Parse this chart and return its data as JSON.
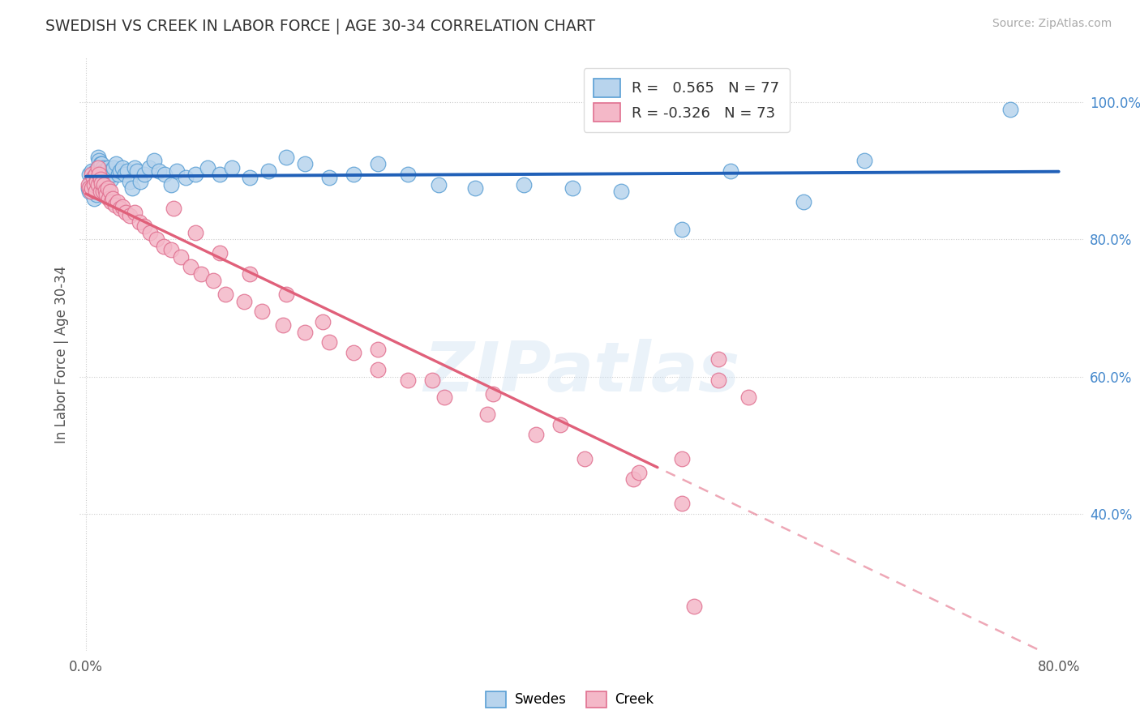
{
  "title": "SWEDISH VS CREEK IN LABOR FORCE | AGE 30-34 CORRELATION CHART",
  "source_text": "Source: ZipAtlas.com",
  "ylabel": "In Labor Force | Age 30-34",
  "xlim": [
    -0.005,
    0.82
  ],
  "ylim": [
    0.2,
    1.065
  ],
  "R_blue": 0.565,
  "N_blue": 77,
  "R_pink": -0.326,
  "N_pink": 73,
  "blue_face": "#b8d4ed",
  "blue_edge": "#5a9fd4",
  "blue_line": "#2060b8",
  "pink_face": "#f4b8c8",
  "pink_edge": "#e07090",
  "pink_line": "#e0607a",
  "watermark": "ZIPatlas",
  "legend_blue": "Swedes",
  "legend_pink": "Creek",
  "swedes_x": [
    0.002,
    0.003,
    0.003,
    0.004,
    0.005,
    0.005,
    0.006,
    0.006,
    0.007,
    0.007,
    0.008,
    0.008,
    0.009,
    0.009,
    0.01,
    0.01,
    0.01,
    0.011,
    0.011,
    0.012,
    0.012,
    0.013,
    0.013,
    0.014,
    0.014,
    0.015,
    0.015,
    0.016,
    0.016,
    0.017,
    0.018,
    0.019,
    0.02,
    0.021,
    0.022,
    0.023,
    0.025,
    0.027,
    0.028,
    0.03,
    0.032,
    0.034,
    0.036,
    0.038,
    0.04,
    0.042,
    0.045,
    0.048,
    0.052,
    0.056,
    0.06,
    0.065,
    0.07,
    0.075,
    0.082,
    0.09,
    0.1,
    0.11,
    0.12,
    0.135,
    0.15,
    0.165,
    0.18,
    0.2,
    0.22,
    0.24,
    0.265,
    0.29,
    0.32,
    0.36,
    0.4,
    0.44,
    0.49,
    0.53,
    0.59,
    0.64,
    0.76
  ],
  "swedes_y": [
    0.875,
    0.895,
    0.87,
    0.885,
    0.9,
    0.875,
    0.89,
    0.87,
    0.885,
    0.86,
    0.9,
    0.875,
    0.895,
    0.865,
    0.92,
    0.905,
    0.88,
    0.915,
    0.89,
    0.91,
    0.885,
    0.91,
    0.888,
    0.905,
    0.882,
    0.9,
    0.878,
    0.895,
    0.87,
    0.89,
    0.905,
    0.895,
    0.9,
    0.888,
    0.895,
    0.905,
    0.91,
    0.895,
    0.9,
    0.905,
    0.895,
    0.9,
    0.885,
    0.875,
    0.905,
    0.9,
    0.885,
    0.895,
    0.905,
    0.915,
    0.9,
    0.895,
    0.88,
    0.9,
    0.89,
    0.895,
    0.905,
    0.895,
    0.905,
    0.89,
    0.9,
    0.92,
    0.91,
    0.89,
    0.895,
    0.91,
    0.895,
    0.88,
    0.875,
    0.88,
    0.875,
    0.87,
    0.815,
    0.9,
    0.855,
    0.915,
    0.99
  ],
  "creek_x": [
    0.002,
    0.003,
    0.004,
    0.005,
    0.005,
    0.006,
    0.007,
    0.008,
    0.008,
    0.009,
    0.01,
    0.01,
    0.011,
    0.012,
    0.012,
    0.013,
    0.014,
    0.015,
    0.016,
    0.017,
    0.018,
    0.019,
    0.02,
    0.021,
    0.022,
    0.024,
    0.026,
    0.028,
    0.03,
    0.033,
    0.036,
    0.04,
    0.044,
    0.048,
    0.053,
    0.058,
    0.064,
    0.07,
    0.078,
    0.086,
    0.095,
    0.105,
    0.115,
    0.13,
    0.145,
    0.162,
    0.18,
    0.2,
    0.22,
    0.24,
    0.265,
    0.295,
    0.33,
    0.37,
    0.41,
    0.45,
    0.49,
    0.52,
    0.52,
    0.545,
    0.49,
    0.455,
    0.39,
    0.335,
    0.285,
    0.24,
    0.195,
    0.165,
    0.135,
    0.11,
    0.09,
    0.072,
    0.5
  ],
  "creek_y": [
    0.88,
    0.875,
    0.87,
    0.895,
    0.875,
    0.89,
    0.88,
    0.895,
    0.87,
    0.885,
    0.905,
    0.88,
    0.895,
    0.888,
    0.87,
    0.882,
    0.87,
    0.88,
    0.872,
    0.865,
    0.875,
    0.86,
    0.87,
    0.855,
    0.86,
    0.85,
    0.855,
    0.845,
    0.848,
    0.84,
    0.835,
    0.84,
    0.825,
    0.82,
    0.81,
    0.8,
    0.79,
    0.785,
    0.775,
    0.76,
    0.75,
    0.74,
    0.72,
    0.71,
    0.695,
    0.675,
    0.665,
    0.65,
    0.635,
    0.61,
    0.595,
    0.57,
    0.545,
    0.515,
    0.48,
    0.45,
    0.415,
    0.625,
    0.595,
    0.57,
    0.48,
    0.46,
    0.53,
    0.575,
    0.595,
    0.64,
    0.68,
    0.72,
    0.75,
    0.78,
    0.81,
    0.845,
    0.265
  ]
}
